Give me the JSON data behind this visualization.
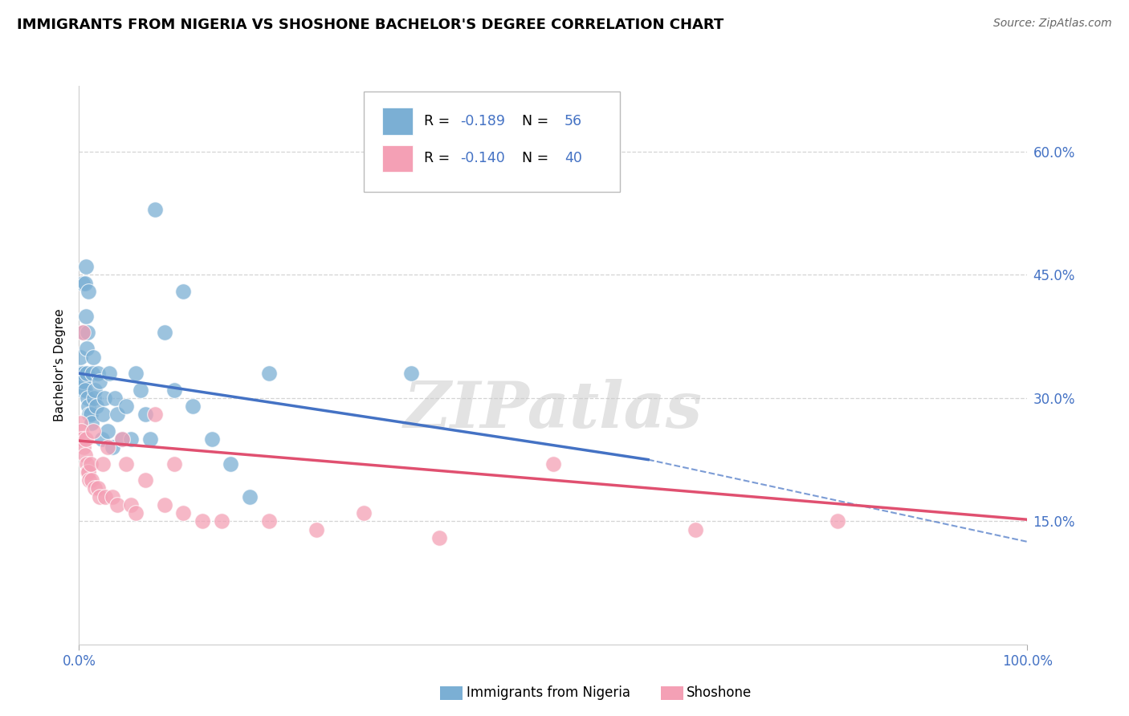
{
  "title": "IMMIGRANTS FROM NIGERIA VS SHOSHONE BACHELOR'S DEGREE CORRELATION CHART",
  "source": "Source: ZipAtlas.com",
  "ylabel": "Bachelor's Degree",
  "xlim": [
    0,
    1.0
  ],
  "ylim": [
    0,
    0.68
  ],
  "yticks": [
    0.15,
    0.3,
    0.45,
    0.6
  ],
  "ytick_labels": [
    "15.0%",
    "30.0%",
    "45.0%",
    "60.0%"
  ],
  "watermark": "ZIPatlas",
  "blue_scatter_x": [
    0.001,
    0.002,
    0.002,
    0.003,
    0.003,
    0.004,
    0.004,
    0.004,
    0.005,
    0.005,
    0.005,
    0.006,
    0.006,
    0.007,
    0.007,
    0.008,
    0.008,
    0.009,
    0.009,
    0.01,
    0.01,
    0.011,
    0.012,
    0.013,
    0.014,
    0.015,
    0.016,
    0.017,
    0.018,
    0.02,
    0.022,
    0.024,
    0.025,
    0.027,
    0.03,
    0.032,
    0.035,
    0.038,
    0.04,
    0.045,
    0.05,
    0.055,
    0.06,
    0.065,
    0.07,
    0.075,
    0.08,
    0.09,
    0.1,
    0.11,
    0.12,
    0.14,
    0.16,
    0.18,
    0.2,
    0.35
  ],
  "blue_scatter_y": [
    0.35,
    0.33,
    0.33,
    0.32,
    0.32,
    0.31,
    0.32,
    0.44,
    0.33,
    0.32,
    0.38,
    0.31,
    0.44,
    0.4,
    0.46,
    0.33,
    0.36,
    0.3,
    0.38,
    0.29,
    0.43,
    0.28,
    0.28,
    0.27,
    0.33,
    0.35,
    0.3,
    0.31,
    0.29,
    0.33,
    0.32,
    0.25,
    0.28,
    0.3,
    0.26,
    0.33,
    0.24,
    0.3,
    0.28,
    0.25,
    0.29,
    0.25,
    0.33,
    0.31,
    0.28,
    0.25,
    0.53,
    0.38,
    0.31,
    0.43,
    0.29,
    0.25,
    0.22,
    0.18,
    0.33,
    0.33
  ],
  "pink_scatter_x": [
    0.001,
    0.002,
    0.003,
    0.004,
    0.005,
    0.006,
    0.007,
    0.008,
    0.009,
    0.01,
    0.011,
    0.012,
    0.013,
    0.015,
    0.017,
    0.02,
    0.022,
    0.025,
    0.028,
    0.03,
    0.035,
    0.04,
    0.045,
    0.05,
    0.055,
    0.06,
    0.07,
    0.08,
    0.09,
    0.1,
    0.11,
    0.13,
    0.15,
    0.2,
    0.25,
    0.3,
    0.38,
    0.5,
    0.65,
    0.8
  ],
  "pink_scatter_y": [
    0.27,
    0.26,
    0.25,
    0.38,
    0.24,
    0.23,
    0.25,
    0.22,
    0.21,
    0.21,
    0.2,
    0.22,
    0.2,
    0.26,
    0.19,
    0.19,
    0.18,
    0.22,
    0.18,
    0.24,
    0.18,
    0.17,
    0.25,
    0.22,
    0.17,
    0.16,
    0.2,
    0.28,
    0.17,
    0.22,
    0.16,
    0.15,
    0.15,
    0.15,
    0.14,
    0.16,
    0.13,
    0.22,
    0.14,
    0.15
  ],
  "blue_line": {
    "x": [
      0.0,
      0.6
    ],
    "y": [
      0.33,
      0.225
    ]
  },
  "blue_dashed": {
    "x": [
      0.6,
      1.0
    ],
    "y": [
      0.225,
      0.125
    ]
  },
  "pink_line": {
    "x": [
      0.0,
      1.0
    ],
    "y": [
      0.248,
      0.152
    ]
  },
  "blue_color": "#4472c4",
  "pink_color": "#e05070",
  "blue_scatter_color": "#7bafd4",
  "pink_scatter_color": "#f4a0b5",
  "grid_color": "#d0d0d0",
  "tick_color": "#4472c4",
  "r1": "-0.189",
  "n1": "56",
  "r2": "-0.140",
  "n2": "40",
  "label1": "Immigrants from Nigeria",
  "label2": "Shoshone",
  "title_fontsize": 13,
  "tick_fontsize": 12
}
